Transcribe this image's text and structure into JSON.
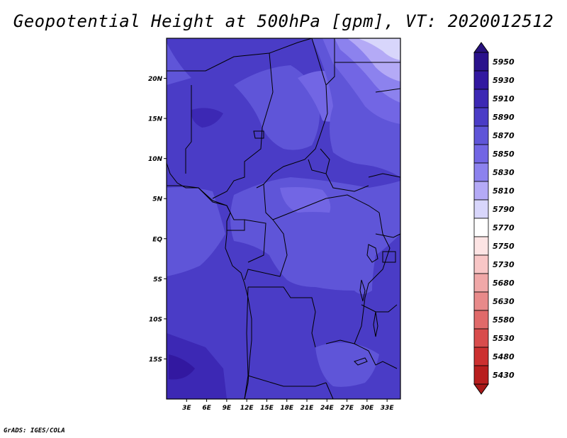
{
  "title": "Geopotential Height at 500hPa [gpm], VT: 2020012512",
  "credit": "GrADS: IGES/COLA",
  "map": {
    "lat_labels": [
      {
        "text": "20N",
        "lat": 20
      },
      {
        "text": "15N",
        "lat": 15
      },
      {
        "text": "10N",
        "lat": 10
      },
      {
        "text": "5N",
        "lat": 5
      },
      {
        "text": "EQ",
        "lat": 0
      },
      {
        "text": "5S",
        "lat": -5
      },
      {
        "text": "10S",
        "lat": -10
      },
      {
        "text": "15S",
        "lat": -15
      }
    ],
    "lon_labels": [
      {
        "text": "3E",
        "lon": 3
      },
      {
        "text": "6E",
        "lon": 6
      },
      {
        "text": "9E",
        "lon": 9
      },
      {
        "text": "12E",
        "lon": 12
      },
      {
        "text": "15E",
        "lon": 15
      },
      {
        "text": "18E",
        "lon": 18
      },
      {
        "text": "21E",
        "lon": 21
      },
      {
        "text": "24E",
        "lon": 24
      },
      {
        "text": "27E",
        "lon": 27
      },
      {
        "text": "30E",
        "lon": 30
      },
      {
        "text": "33E",
        "lon": 33
      }
    ],
    "extent": {
      "lon_min": 0,
      "lon_max": 35,
      "lat_min": -20,
      "lat_max": 25
    }
  },
  "colorbar": {
    "levels": [
      {
        "label": "5950",
        "color": "#2a128c"
      },
      {
        "label": "5930",
        "color": "#3218a0"
      },
      {
        "label": "5910",
        "color": "#3c28b4"
      },
      {
        "label": "5890",
        "color": "#4a3cc6"
      },
      {
        "label": "5870",
        "color": "#5f55d8"
      },
      {
        "label": "5850",
        "color": "#7266e4"
      },
      {
        "label": "5830",
        "color": "#8c82ee"
      },
      {
        "label": "5810",
        "color": "#b4aaf6"
      },
      {
        "label": "5790",
        "color": "#d8d6fb"
      },
      {
        "label": "5770",
        "color": "#ffffff"
      },
      {
        "label": "5750",
        "color": "#fde4e4"
      },
      {
        "label": "5730",
        "color": "#f8c6c6"
      },
      {
        "label": "5680",
        "color": "#f0a8a8"
      },
      {
        "label": "5630",
        "color": "#e88a8a"
      },
      {
        "label": "5580",
        "color": "#e06a6a"
      },
      {
        "label": "5530",
        "color": "#d84c4c"
      },
      {
        "label": "5480",
        "color": "#cc3030"
      },
      {
        "label": "5430",
        "color": "#b81e1e"
      }
    ],
    "top_color": "#28127e",
    "bottom_color": "#a81818"
  }
}
